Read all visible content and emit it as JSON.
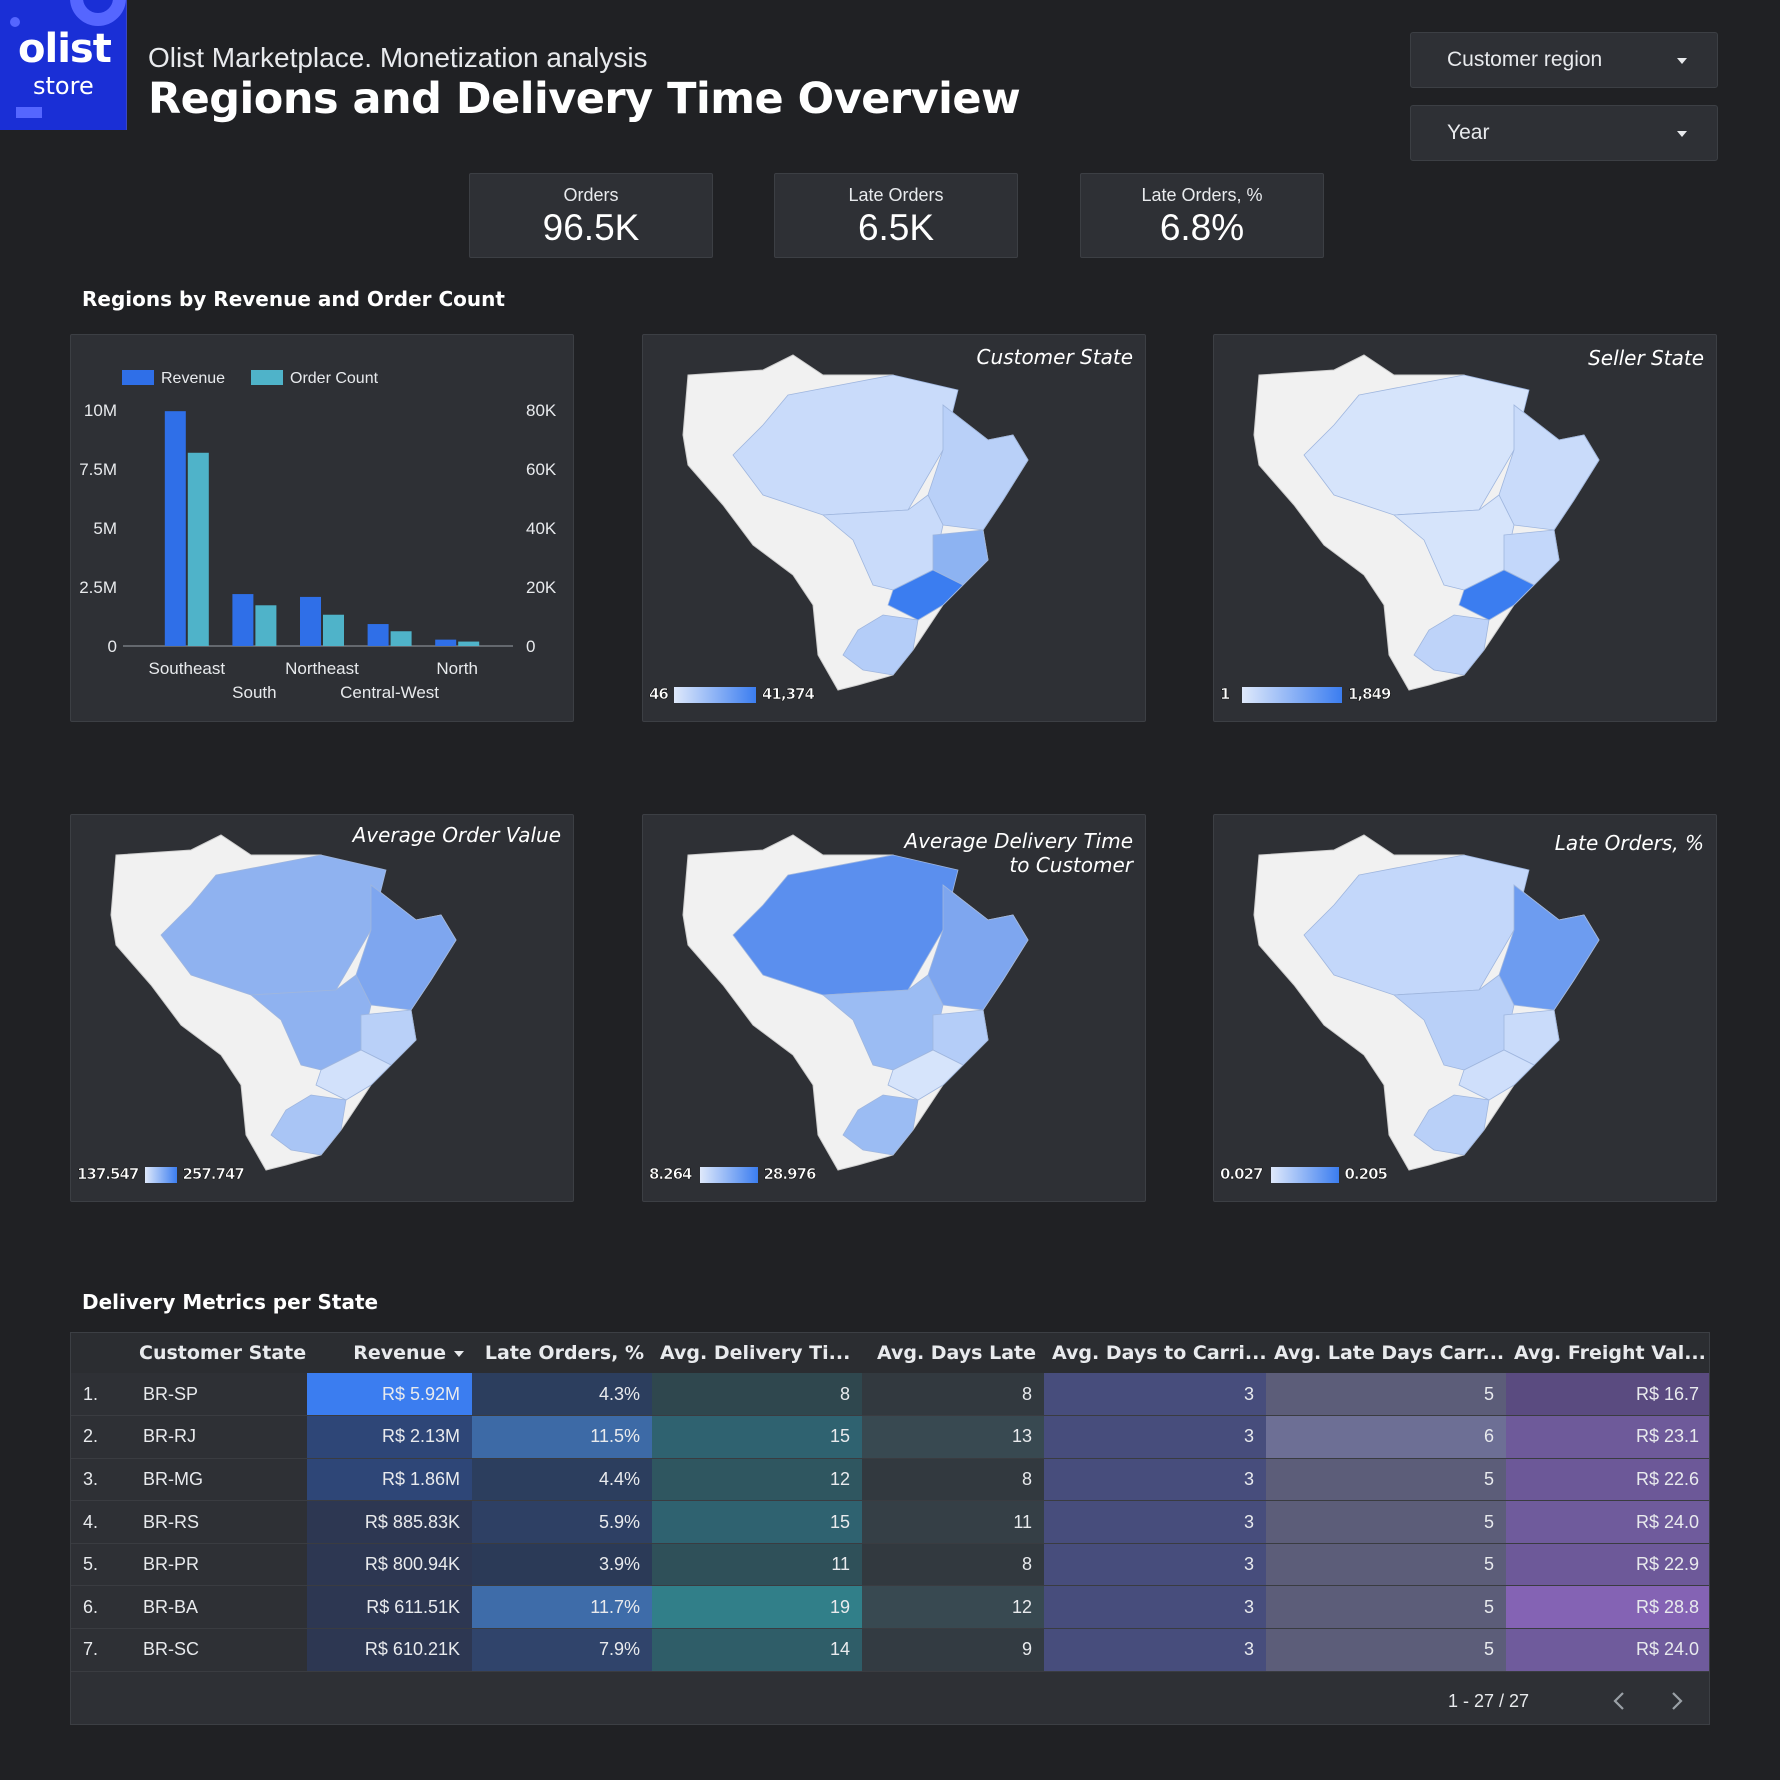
{
  "logo": {
    "word1": "olist",
    "word2": "store"
  },
  "header": {
    "subtitle": "Olist Marketplace. Monetization analysis",
    "title": "Regions and Delivery Time Overview"
  },
  "filters": {
    "region": "Customer region",
    "year": "Year"
  },
  "kpis": [
    {
      "label": "Orders",
      "value": "96.5K"
    },
    {
      "label": "Late Orders",
      "value": "6.5K"
    },
    {
      "label": "Late Orders, %",
      "value": "6.8%"
    }
  ],
  "sections": {
    "regions": "Regions by Revenue and Order Count",
    "delivery": "Delivery Metrics per State"
  },
  "chart_data": {
    "type": "bar",
    "title": "",
    "categories": [
      "Southeast",
      "South",
      "Northeast",
      "Central-West",
      "North"
    ],
    "series": [
      {
        "name": "Revenue",
        "axis": "left",
        "color": "#2f6fe8",
        "values": [
          9950000,
          2200000,
          2080000,
          930000,
          270000
        ]
      },
      {
        "name": "Order Count",
        "axis": "right",
        "color": "#4fb3c9",
        "values": [
          65500,
          13800,
          10600,
          5000,
          1500
        ]
      }
    ],
    "y_left": {
      "ticks": [
        "0",
        "2.5M",
        "5M",
        "7.5M",
        "10M"
      ],
      "range": [
        0,
        10000000
      ]
    },
    "y_right": {
      "ticks": [
        "0",
        "20K",
        "40K",
        "60K",
        "80K"
      ],
      "range": [
        0,
        80000
      ]
    },
    "legend_position": "top-left",
    "grid": false
  },
  "maps": [
    {
      "title": "Customer State",
      "min": "46",
      "max": "41,374"
    },
    {
      "title": "Seller State",
      "min": "1",
      "max": "1,849"
    },
    {
      "title": "Average Order Value",
      "min": "137.547",
      "max": "257.747"
    },
    {
      "title": "Average Delivery Time to Customer",
      "min": "8.264",
      "max": "28.976"
    },
    {
      "title": "Late Orders, %",
      "min": "0.027",
      "max": "0.205"
    }
  ],
  "table": {
    "columns": [
      "Customer State",
      "Revenue",
      "Late Orders, %",
      "Avg. Delivery Ti...",
      "Avg. Days Late",
      "Avg. Days to Carri...",
      "Avg. Late Days Carr...",
      "Avg. Freight Val..."
    ],
    "rows": [
      {
        "idx": "1.",
        "state": "BR-SP",
        "revenue": "R$ 5.92M",
        "late_pct": "4.3%",
        "delivery": "8",
        "days_late": "8",
        "to_carrier": "3",
        "late_carrier": "5",
        "freight": "R$ 16.7"
      },
      {
        "idx": "2.",
        "state": "BR-RJ",
        "revenue": "R$ 2.13M",
        "late_pct": "11.5%",
        "delivery": "15",
        "days_late": "13",
        "to_carrier": "3",
        "late_carrier": "6",
        "freight": "R$ 23.1"
      },
      {
        "idx": "3.",
        "state": "BR-MG",
        "revenue": "R$ 1.86M",
        "late_pct": "4.4%",
        "delivery": "12",
        "days_late": "8",
        "to_carrier": "3",
        "late_carrier": "5",
        "freight": "R$ 22.6"
      },
      {
        "idx": "4.",
        "state": "BR-RS",
        "revenue": "R$ 885.83K",
        "late_pct": "5.9%",
        "delivery": "15",
        "days_late": "11",
        "to_carrier": "3",
        "late_carrier": "5",
        "freight": "R$ 24.0"
      },
      {
        "idx": "5.",
        "state": "BR-PR",
        "revenue": "R$ 800.94K",
        "late_pct": "3.9%",
        "delivery": "11",
        "days_late": "8",
        "to_carrier": "3",
        "late_carrier": "5",
        "freight": "R$ 22.9"
      },
      {
        "idx": "6.",
        "state": "BR-BA",
        "revenue": "R$ 611.51K",
        "late_pct": "11.7%",
        "delivery": "19",
        "days_late": "12",
        "to_carrier": "3",
        "late_carrier": "5",
        "freight": "R$ 28.8"
      },
      {
        "idx": "7.",
        "state": "BR-SC",
        "revenue": "R$ 610.21K",
        "late_pct": "7.9%",
        "delivery": "14",
        "days_late": "9",
        "to_carrier": "3",
        "late_carrier": "5",
        "freight": "R$ 24.0"
      }
    ],
    "pagination": "1 - 27 / 27"
  },
  "colors": {
    "background": "#202124",
    "panel": "#2e3035",
    "accent_blue": "#2f6fe8",
    "accent_teal": "#4fb3c9",
    "logo_blue": "#1a2fd6"
  }
}
